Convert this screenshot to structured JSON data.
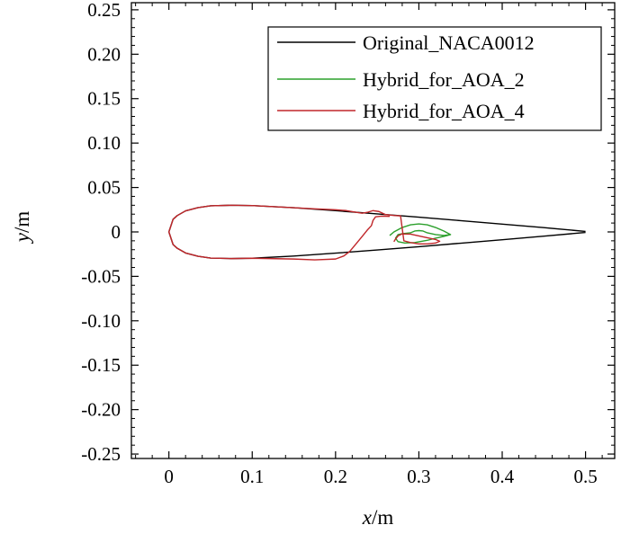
{
  "chart_data": {
    "type": "line",
    "title": "",
    "xlabel_var": "x",
    "xlabel_unit": "/m",
    "ylabel_var": "y",
    "ylabel_unit": "/m",
    "xlim": [
      -0.045,
      0.535
    ],
    "ylim": [
      -0.255,
      0.258
    ],
    "xticks": [
      0,
      0.1,
      0.2,
      0.3,
      0.4,
      0.5
    ],
    "xtick_labels": [
      "0",
      "0.1",
      "0.2",
      "0.3",
      "0.4",
      "0.5"
    ],
    "yticks": [
      0.25,
      0.2,
      0.15,
      0.1,
      0.05,
      0,
      -0.05,
      -0.1,
      -0.15,
      -0.2,
      -0.25
    ],
    "ytick_labels": [
      "0.25",
      "0.20",
      "0.15",
      "0.10",
      "0.05",
      "0",
      "-0.05",
      "-0.10",
      "-0.15",
      "-0.20",
      "-0.25"
    ],
    "grid": false,
    "legend_position": "top-right",
    "series": [
      {
        "name": "Original_NACA0012",
        "color": "#000000",
        "x": [
          0.5,
          0.45,
          0.4,
          0.35,
          0.3,
          0.25,
          0.2,
          0.15,
          0.1,
          0.075,
          0.05,
          0.035,
          0.02,
          0.01,
          0.005,
          0.0,
          0.005,
          0.01,
          0.02,
          0.035,
          0.05,
          0.075,
          0.1,
          0.15,
          0.2,
          0.25,
          0.3,
          0.35,
          0.4,
          0.45,
          0.5
        ],
        "y": [
          0.0006,
          0.0048,
          0.0088,
          0.0127,
          0.0166,
          0.0203,
          0.0239,
          0.0272,
          0.0296,
          0.03,
          0.0294,
          0.0274,
          0.0237,
          0.0184,
          0.0142,
          0.0,
          -0.0142,
          -0.0184,
          -0.0237,
          -0.0274,
          -0.0294,
          -0.03,
          -0.0296,
          -0.0272,
          -0.0239,
          -0.0203,
          -0.0166,
          -0.0127,
          -0.0088,
          -0.0048,
          -0.0006
        ]
      },
      {
        "name": "Hybrid_for_AOA_2",
        "color": "#2ca02c",
        "x": [
          0.265,
          0.27,
          0.28,
          0.29,
          0.3,
          0.31,
          0.32,
          0.33,
          0.338,
          0.33,
          0.32,
          0.31,
          0.305,
          0.3,
          0.295,
          0.29,
          0.285,
          0.28,
          0.275,
          0.272,
          0.275,
          0.283,
          0.295,
          0.31,
          0.32,
          0.33,
          0.338
        ],
        "y": [
          -0.004,
          0.0,
          0.005,
          0.008,
          0.009,
          0.008,
          0.005,
          0.001,
          -0.003,
          -0.004,
          -0.003,
          -0.001,
          0.001,
          0.0015,
          0.001,
          -0.001,
          -0.0015,
          -0.002,
          -0.003,
          -0.007,
          -0.011,
          -0.0125,
          -0.012,
          -0.0095,
          -0.007,
          -0.005,
          -0.003
        ]
      },
      {
        "name": "Hybrid_for_AOA_4",
        "color": "#c0262a",
        "x": [
          0.265,
          0.255,
          0.248,
          0.245,
          0.243,
          0.238,
          0.232,
          0.225,
          0.217,
          0.21,
          0.2,
          0.175,
          0.15,
          0.1,
          0.075,
          0.05,
          0.035,
          0.02,
          0.01,
          0.005,
          0.0,
          0.005,
          0.01,
          0.02,
          0.035,
          0.05,
          0.075,
          0.1,
          0.15,
          0.175,
          0.2,
          0.213,
          0.225,
          0.232,
          0.238,
          0.245,
          0.252,
          0.26,
          0.27,
          0.278,
          0.282,
          0.29,
          0.3,
          0.31,
          0.32,
          0.325,
          0.32,
          0.31,
          0.3,
          0.29,
          0.28,
          0.275,
          0.272,
          0.27
        ],
        "y": [
          0.0175,
          0.0178,
          0.017,
          0.013,
          0.007,
          0.002,
          -0.005,
          -0.013,
          -0.022,
          -0.027,
          -0.0305,
          -0.0315,
          -0.0305,
          -0.0296,
          -0.03,
          -0.0294,
          -0.0274,
          -0.0237,
          -0.0184,
          -0.0142,
          0.0,
          0.0142,
          0.0184,
          0.0237,
          0.0274,
          0.0294,
          0.03,
          0.0296,
          0.0272,
          0.026,
          0.025,
          0.024,
          0.022,
          0.021,
          0.022,
          0.024,
          0.023,
          0.0195,
          0.0185,
          0.018,
          -0.01,
          -0.012,
          -0.0135,
          -0.0135,
          -0.0125,
          -0.0105,
          -0.0085,
          -0.0065,
          -0.0045,
          -0.0025,
          -0.0022,
          -0.0045,
          -0.008,
          -0.011
        ]
      }
    ]
  }
}
